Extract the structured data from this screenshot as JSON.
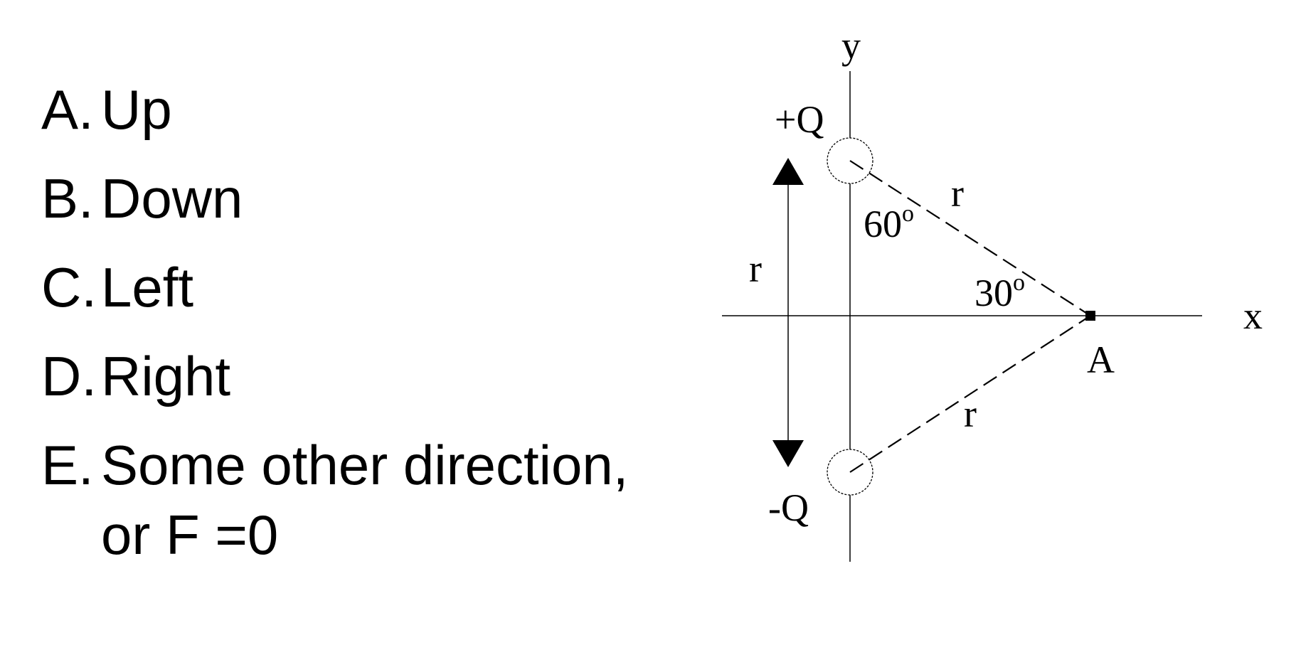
{
  "choices": [
    {
      "letter": "A.",
      "text": "Up",
      "cont": ""
    },
    {
      "letter": "B.",
      "text": "Down",
      "cont": ""
    },
    {
      "letter": "C.",
      "text": "Left",
      "cont": ""
    },
    {
      "letter": "D.",
      "text": "Right",
      "cont": ""
    },
    {
      "letter": "E.",
      "text": "Some other direction,",
      "cont": "or F =0"
    }
  ],
  "diagram": {
    "axis_y_label": "y",
    "axis_x_label": "x",
    "charge_top_label": "+Q",
    "charge_bottom_label": "-Q",
    "point_label": "A",
    "distance_label_vertical": "r",
    "distance_label_top": "r",
    "distance_label_bottom": "r",
    "angle_top_value": "60",
    "angle_right_value": "30",
    "degree_mark": "o"
  }
}
